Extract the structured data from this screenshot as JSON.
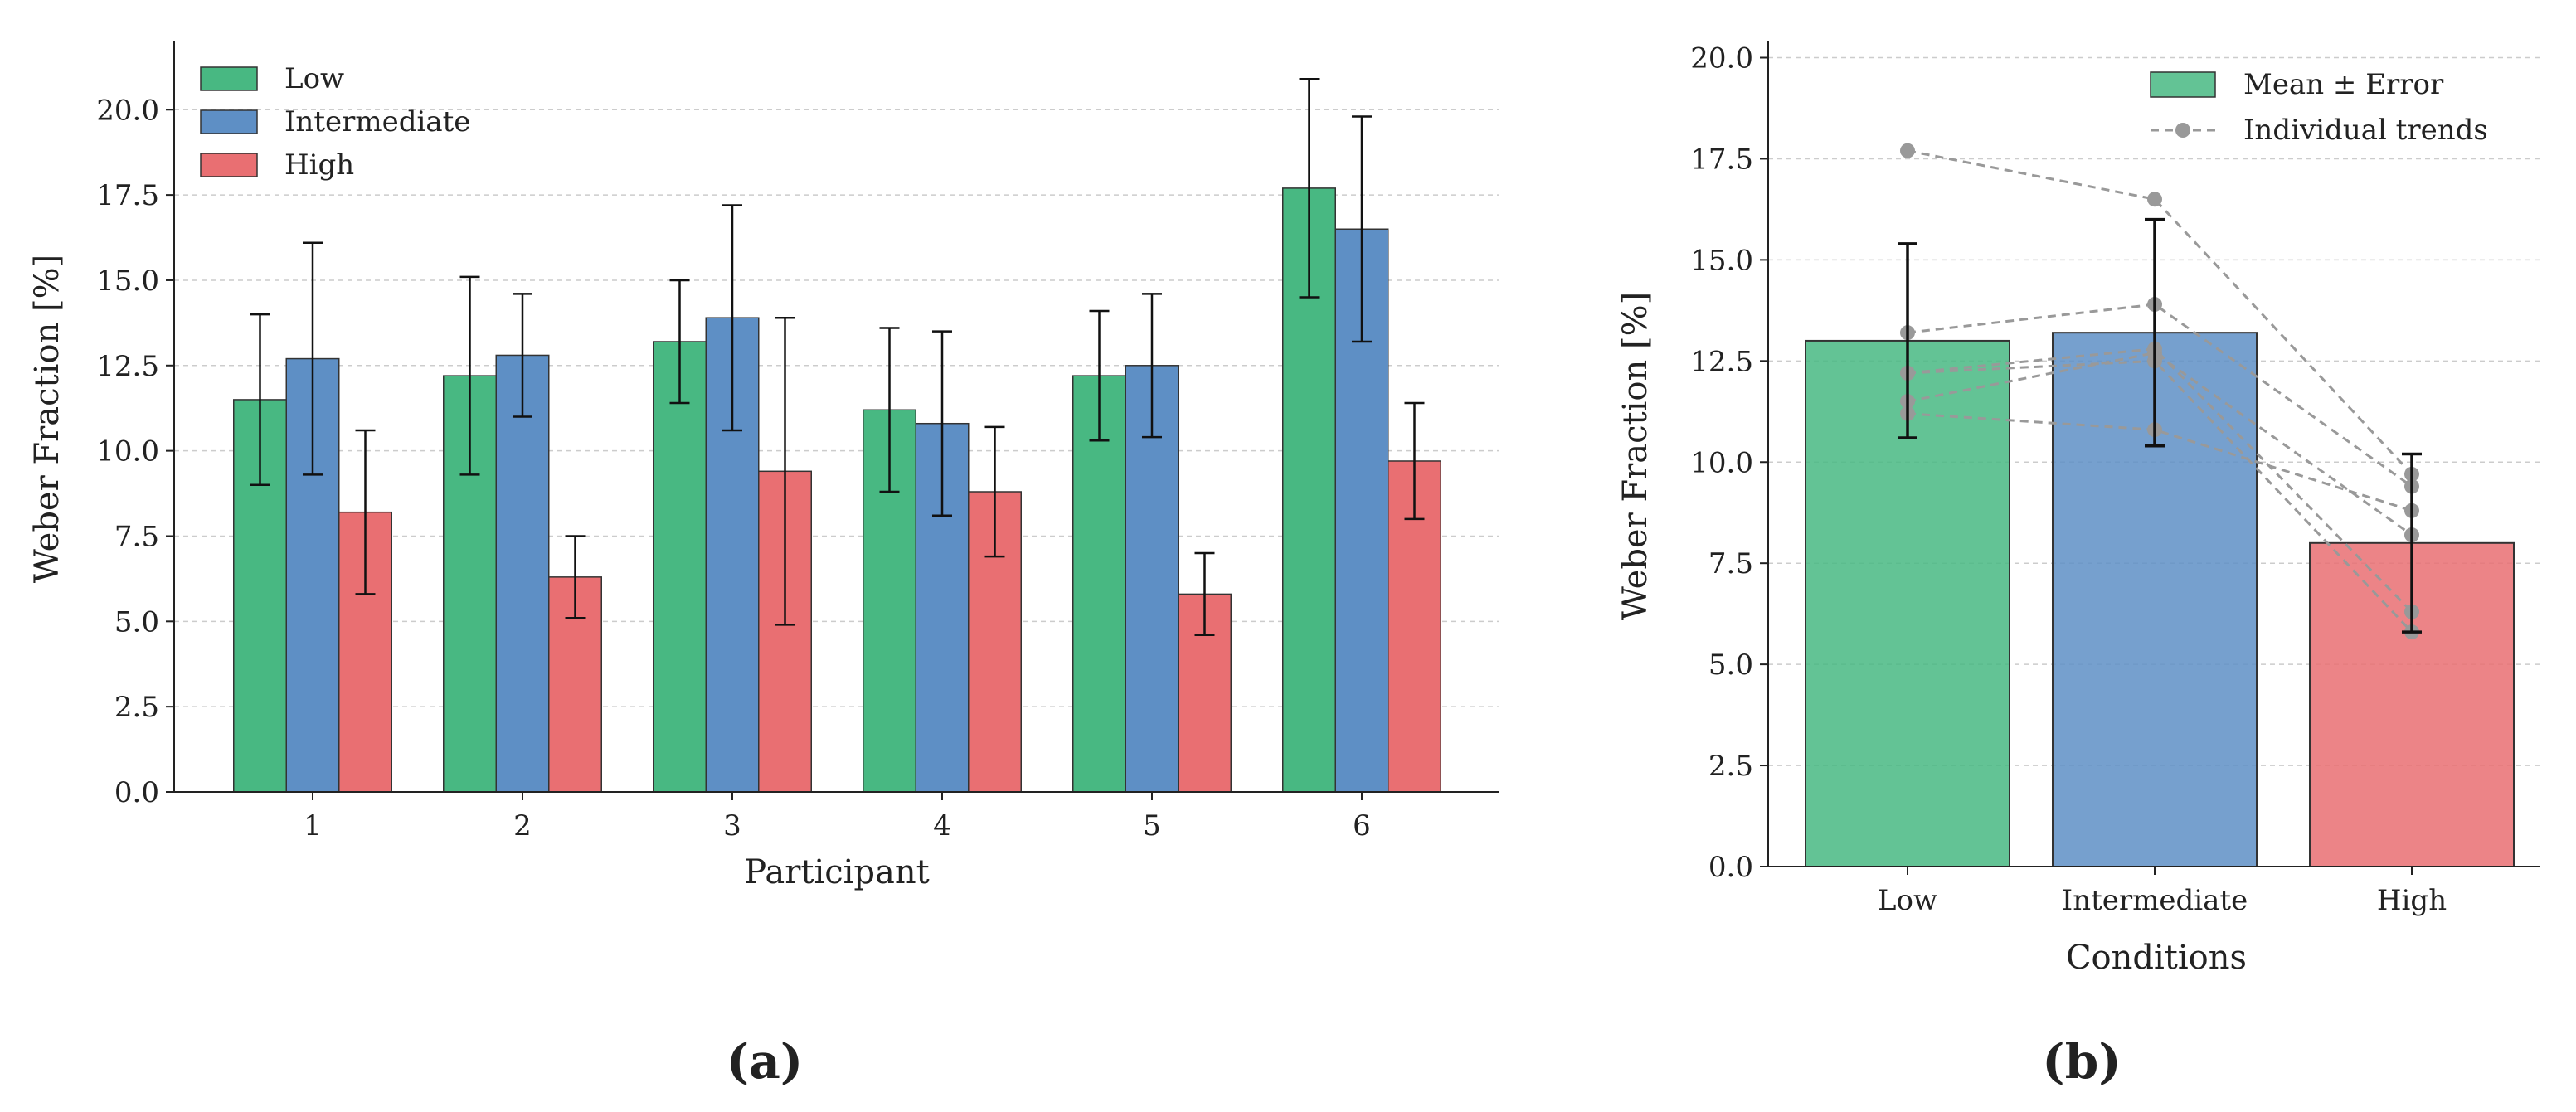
{
  "colors": {
    "low": "#48b882",
    "intermediate": "#5e8fc5",
    "high": "#e96f72",
    "trend": "#999999",
    "grid": "#cccccc"
  },
  "panels": {
    "a": "(a)",
    "b": "(b)"
  },
  "chart_data": [
    {
      "type": "bar",
      "title": "",
      "xlabel": "Participant",
      "ylabel": "Weber Fraction [%]",
      "categories": [
        "1",
        "2",
        "3",
        "4",
        "5",
        "6"
      ],
      "ylim": [
        0,
        22
      ],
      "yticks": [
        "0.0",
        "2.5",
        "5.0",
        "7.5",
        "10.0",
        "12.5",
        "15.0",
        "17.5",
        "20.0"
      ],
      "grid": "y",
      "legend_position": "top-left",
      "series": [
        {
          "name": "Low",
          "color_key": "low",
          "values": [
            11.5,
            12.2,
            13.2,
            11.2,
            12.2,
            17.7
          ],
          "errors": [
            2.5,
            2.9,
            1.8,
            2.4,
            1.9,
            3.2
          ]
        },
        {
          "name": "Intermediate",
          "color_key": "intermediate",
          "values": [
            12.7,
            12.8,
            13.9,
            10.8,
            12.5,
            16.5
          ],
          "errors": [
            3.4,
            1.8,
            3.3,
            2.7,
            2.1,
            3.3
          ]
        },
        {
          "name": "High",
          "color_key": "high",
          "values": [
            8.2,
            6.3,
            9.4,
            8.8,
            5.8,
            9.7
          ],
          "errors": [
            2.4,
            1.2,
            4.5,
            1.9,
            1.2,
            1.7
          ]
        }
      ]
    },
    {
      "type": "bar",
      "title": "",
      "xlabel": "Conditions",
      "ylabel": "Weber Fraction [%]",
      "categories": [
        "Low",
        "Intermediate",
        "High"
      ],
      "ylim": [
        0,
        20.4
      ],
      "yticks": [
        "0.0",
        "2.5",
        "5.0",
        "7.5",
        "10.0",
        "12.5",
        "15.0",
        "17.5",
        "20.0"
      ],
      "grid": "y",
      "legend_position": "top-right",
      "series": [
        {
          "name": "Mean ± Error",
          "values": [
            13.0,
            13.2,
            8.0
          ],
          "errors": [
            2.4,
            2.8,
            2.2
          ]
        }
      ],
      "trend_label": "Individual trends",
      "individual_trends": [
        [
          11.5,
          12.7,
          8.2
        ],
        [
          12.2,
          12.8,
          6.3
        ],
        [
          13.2,
          13.9,
          9.4
        ],
        [
          11.2,
          10.8,
          8.8
        ],
        [
          12.2,
          12.5,
          5.8
        ],
        [
          17.7,
          16.5,
          9.7
        ]
      ]
    }
  ]
}
